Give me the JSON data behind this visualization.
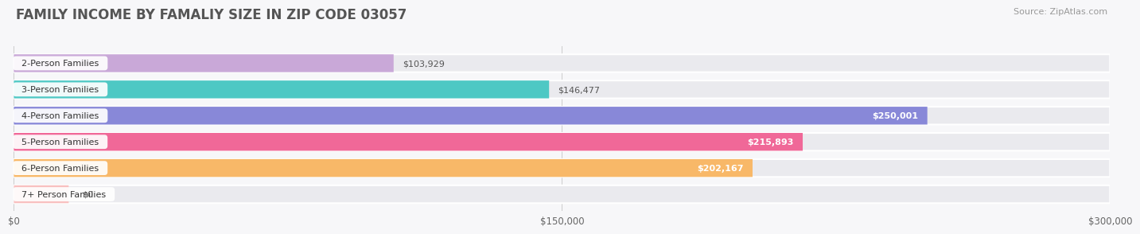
{
  "title": "FAMILY INCOME BY FAMALIY SIZE IN ZIP CODE 03057",
  "source": "Source: ZipAtlas.com",
  "categories": [
    "2-Person Families",
    "3-Person Families",
    "4-Person Families",
    "5-Person Families",
    "6-Person Families",
    "7+ Person Families"
  ],
  "values": [
    103929,
    146477,
    250001,
    215893,
    202167,
    0
  ],
  "bar_colors": [
    "#c9a8d8",
    "#4ec8c4",
    "#8888d8",
    "#f06898",
    "#f8b868",
    "#f8c0c0"
  ],
  "label_texts": [
    "$103,929",
    "$146,477",
    "$250,001",
    "$215,893",
    "$202,167",
    "$0"
  ],
  "label_inside": [
    false,
    false,
    true,
    true,
    true,
    false
  ],
  "xlim": [
    0,
    300000
  ],
  "xticks": [
    0,
    150000,
    300000
  ],
  "xtick_labels": [
    "$0",
    "$150,000",
    "$300,000"
  ],
  "background_color": "#f7f7f9",
  "bar_bg_color": "#eaeaee",
  "title_fontsize": 12,
  "source_fontsize": 8,
  "bar_height": 0.68,
  "bar_label_fontsize": 8.0,
  "seven_plus_value": 15000
}
